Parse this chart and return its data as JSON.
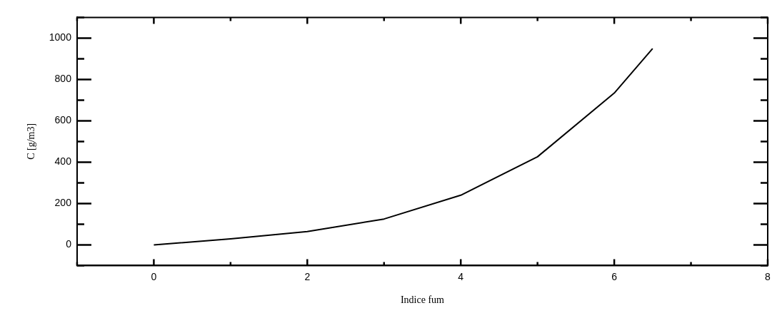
{
  "chart_data": {
    "type": "line",
    "xlabel": "Indice fum",
    "ylabel": "C [g/m3]",
    "x": [
      0,
      1,
      2,
      3,
      4,
      5,
      6,
      6.5
    ],
    "series": [
      {
        "color": "#000000",
        "values": [
          0,
          29,
          64,
          125,
          240,
          426,
          734,
          949
        ]
      }
    ],
    "xlim": [
      -1,
      8
    ],
    "xticks": [
      {
        "value": -1,
        "label": null
      },
      0,
      {
        "value": 1,
        "label": null
      },
      2,
      {
        "value": 3,
        "label": null
      },
      4,
      {
        "value": 5,
        "label": null
      },
      6,
      {
        "value": 7,
        "label": null
      },
      8
    ],
    "ylim": [
      -100,
      1100
    ],
    "yticks": [
      {
        "value": -100,
        "label": null
      },
      0,
      {
        "value": 100,
        "label": null
      },
      200,
      {
        "value": 300,
        "label": null
      },
      400,
      {
        "value": 500,
        "label": null
      },
      600,
      {
        "value": 700,
        "label": null
      },
      800,
      {
        "value": 900,
        "label": null
      },
      1000,
      {
        "value": 1100,
        "label": null
      }
    ],
    "grid": false,
    "legend": false,
    "marker": "none",
    "line_style": "solid"
  }
}
